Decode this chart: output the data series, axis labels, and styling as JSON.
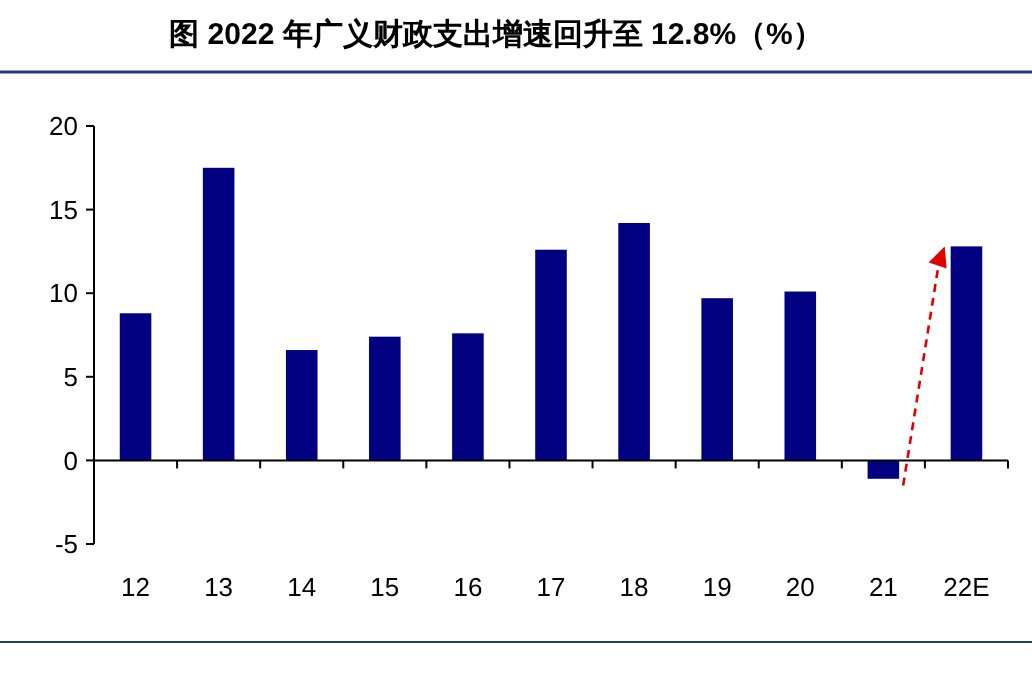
{
  "chart_data": {
    "type": "bar",
    "title": "图  2022 年广义财政支出增速回升至 12.8%（%）",
    "categories": [
      "12",
      "13",
      "14",
      "15",
      "16",
      "17",
      "18",
      "19",
      "20",
      "21",
      "22E"
    ],
    "values": [
      8.8,
      17.5,
      6.6,
      7.4,
      7.6,
      12.6,
      14.2,
      9.7,
      10.1,
      -1.1,
      12.8
    ],
    "color": "#000080",
    "ylim": [
      -5,
      20
    ],
    "yticks": [
      -5,
      0,
      5,
      10,
      15,
      20
    ]
  }
}
